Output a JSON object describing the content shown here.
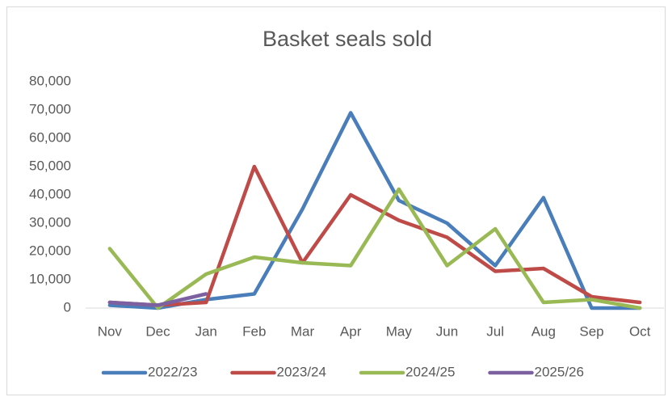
{
  "chart_data": {
    "type": "line",
    "title": "Basket seals sold",
    "categories": [
      "Nov",
      "Dec",
      "Jan",
      "Feb",
      "Mar",
      "Apr",
      "May",
      "Jun",
      "Jul",
      "Aug",
      "Sep",
      "Oct"
    ],
    "series": [
      {
        "name": "2022/23",
        "color": "#4a7ebb",
        "values": [
          1000,
          0,
          3000,
          5000,
          35000,
          69000,
          38000,
          30000,
          15000,
          39000,
          0,
          0
        ]
      },
      {
        "name": "2023/24",
        "color": "#be4b48",
        "values": [
          2000,
          1000,
          2000,
          50000,
          16000,
          40000,
          31000,
          25000,
          13000,
          14000,
          4000,
          2000
        ]
      },
      {
        "name": "2024/25",
        "color": "#98b954",
        "values": [
          21000,
          0,
          12000,
          18000,
          16000,
          15000,
          42000,
          15000,
          28000,
          2000,
          3000,
          0
        ]
      },
      {
        "name": "2025/26",
        "color": "#7d60a0",
        "values": [
          2000,
          1000,
          5000,
          null,
          null,
          null,
          null,
          null,
          null,
          null,
          null,
          null
        ]
      }
    ],
    "ylim": [
      0,
      80000
    ],
    "yticks": [
      0,
      {
        "value": 10000,
        "label": "10,000"
      },
      {
        "value": 20000,
        "label": "20,000"
      },
      {
        "value": 30000,
        "label": "30,000"
      },
      {
        "value": 40000,
        "label": "40,000"
      },
      {
        "value": 50000,
        "label": "50,000"
      },
      {
        "value": 60000,
        "label": "60,000"
      },
      {
        "value": 70000,
        "label": "70,000"
      },
      {
        "value": 80000,
        "label": "80,000"
      }
    ],
    "grid": false,
    "legend": "bottom"
  }
}
